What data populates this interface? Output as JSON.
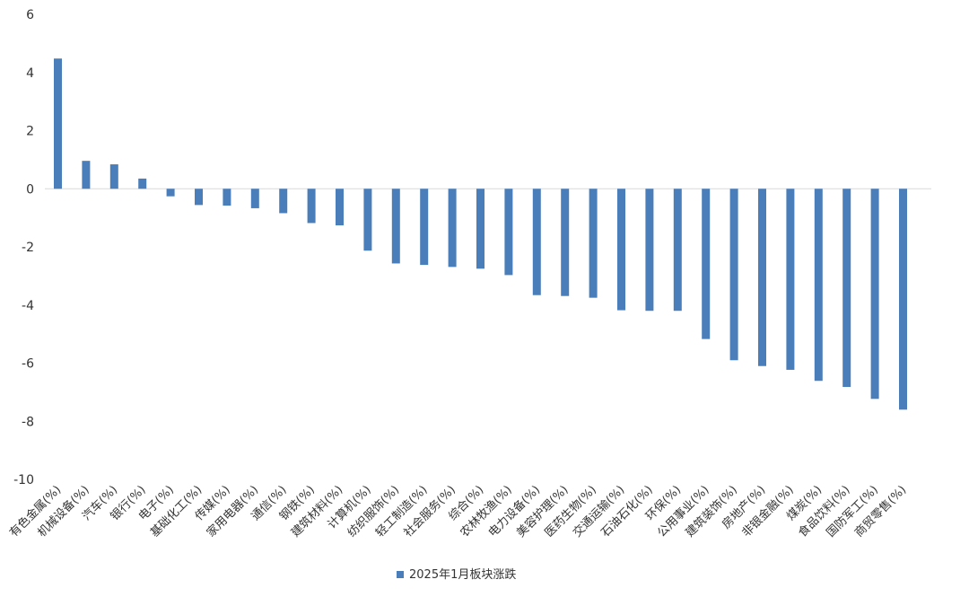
{
  "chart_data": {
    "type": "bar",
    "categories": [
      "有色金属(%)",
      "机械设备(%)",
      "汽车(%)",
      "银行(%)",
      "电子(%)",
      "基础化工(%)",
      "传媒(%)",
      "家用电器(%)",
      "通信(%)",
      "钢铁(%)",
      "建筑材料(%)",
      "计算机(%)",
      "纺织服饰(%)",
      "轻工制造(%)",
      "社会服务(%)",
      "综合(%)",
      "农林牧渔(%)",
      "电力设备(%)",
      "美容护理(%)",
      "医药生物(%)",
      "交通运输(%)",
      "石油石化(%)",
      "环保(%)",
      "公用事业(%)",
      "建筑装饰(%)",
      "房地产(%)",
      "非银金融(%)",
      "煤炭(%)",
      "食品饮料(%)",
      "国防军工(%)",
      "商贸零售(%)"
    ],
    "series": [
      {
        "name": "2025年1月板块涨跌",
        "values": [
          4.48,
          0.96,
          0.84,
          0.35,
          -0.26,
          -0.56,
          -0.58,
          -0.67,
          -0.84,
          -1.18,
          -1.26,
          -2.13,
          -2.57,
          -2.62,
          -2.69,
          -2.75,
          -2.97,
          -3.66,
          -3.69,
          -3.75,
          -4.18,
          -4.2,
          -4.2,
          -5.17,
          -5.9,
          -6.1,
          -6.23,
          -6.61,
          -6.82,
          -7.23,
          -7.6
        ]
      }
    ],
    "ylim": [
      -10,
      6
    ],
    "yticks": [
      "6",
      "4",
      "2",
      "0",
      "-2",
      "-4",
      "-6",
      "-8",
      "-10"
    ],
    "grid": false,
    "legend_position": "bottom",
    "bar_color": "#4a7ebb"
  }
}
